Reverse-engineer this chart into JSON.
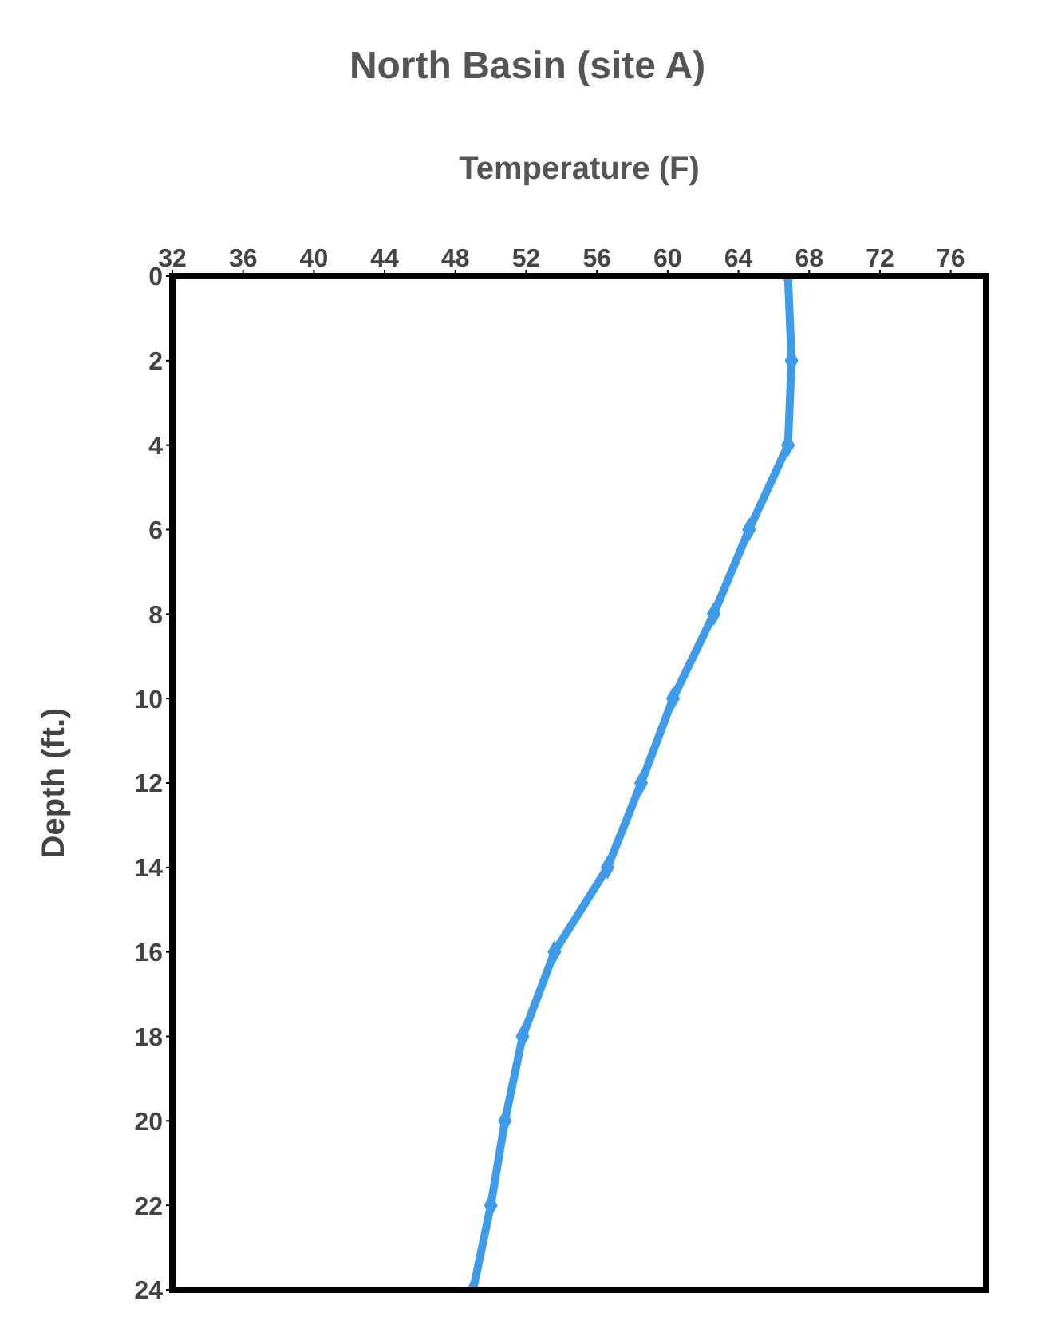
{
  "chart_data": {
    "type": "line",
    "title": "North Basin (site A)",
    "xlabel": "Temperature (F)",
    "ylabel": "Depth (ft.)",
    "x": [
      66.8,
      67.0,
      66.8,
      64.6,
      62.6,
      60.3,
      58.5,
      56.6,
      53.6,
      51.8,
      50.8,
      50.0,
      49.0
    ],
    "series": [
      {
        "color": "#3d9be9",
        "values": [
          0,
          2,
          4,
          6,
          8,
          10,
          12,
          14,
          16,
          18,
          20,
          22,
          24
        ]
      }
    ],
    "xlim": [
      32,
      78
    ],
    "xticks": [
      32,
      36,
      40,
      44,
      48,
      52,
      56,
      60,
      64,
      68,
      72,
      76
    ],
    "ylim": [
      24,
      0
    ],
    "yticks": [
      0,
      2,
      4,
      6,
      8,
      10,
      12,
      14,
      16,
      18,
      20,
      22,
      24
    ],
    "marker": "diamond",
    "line_style": "solid"
  }
}
